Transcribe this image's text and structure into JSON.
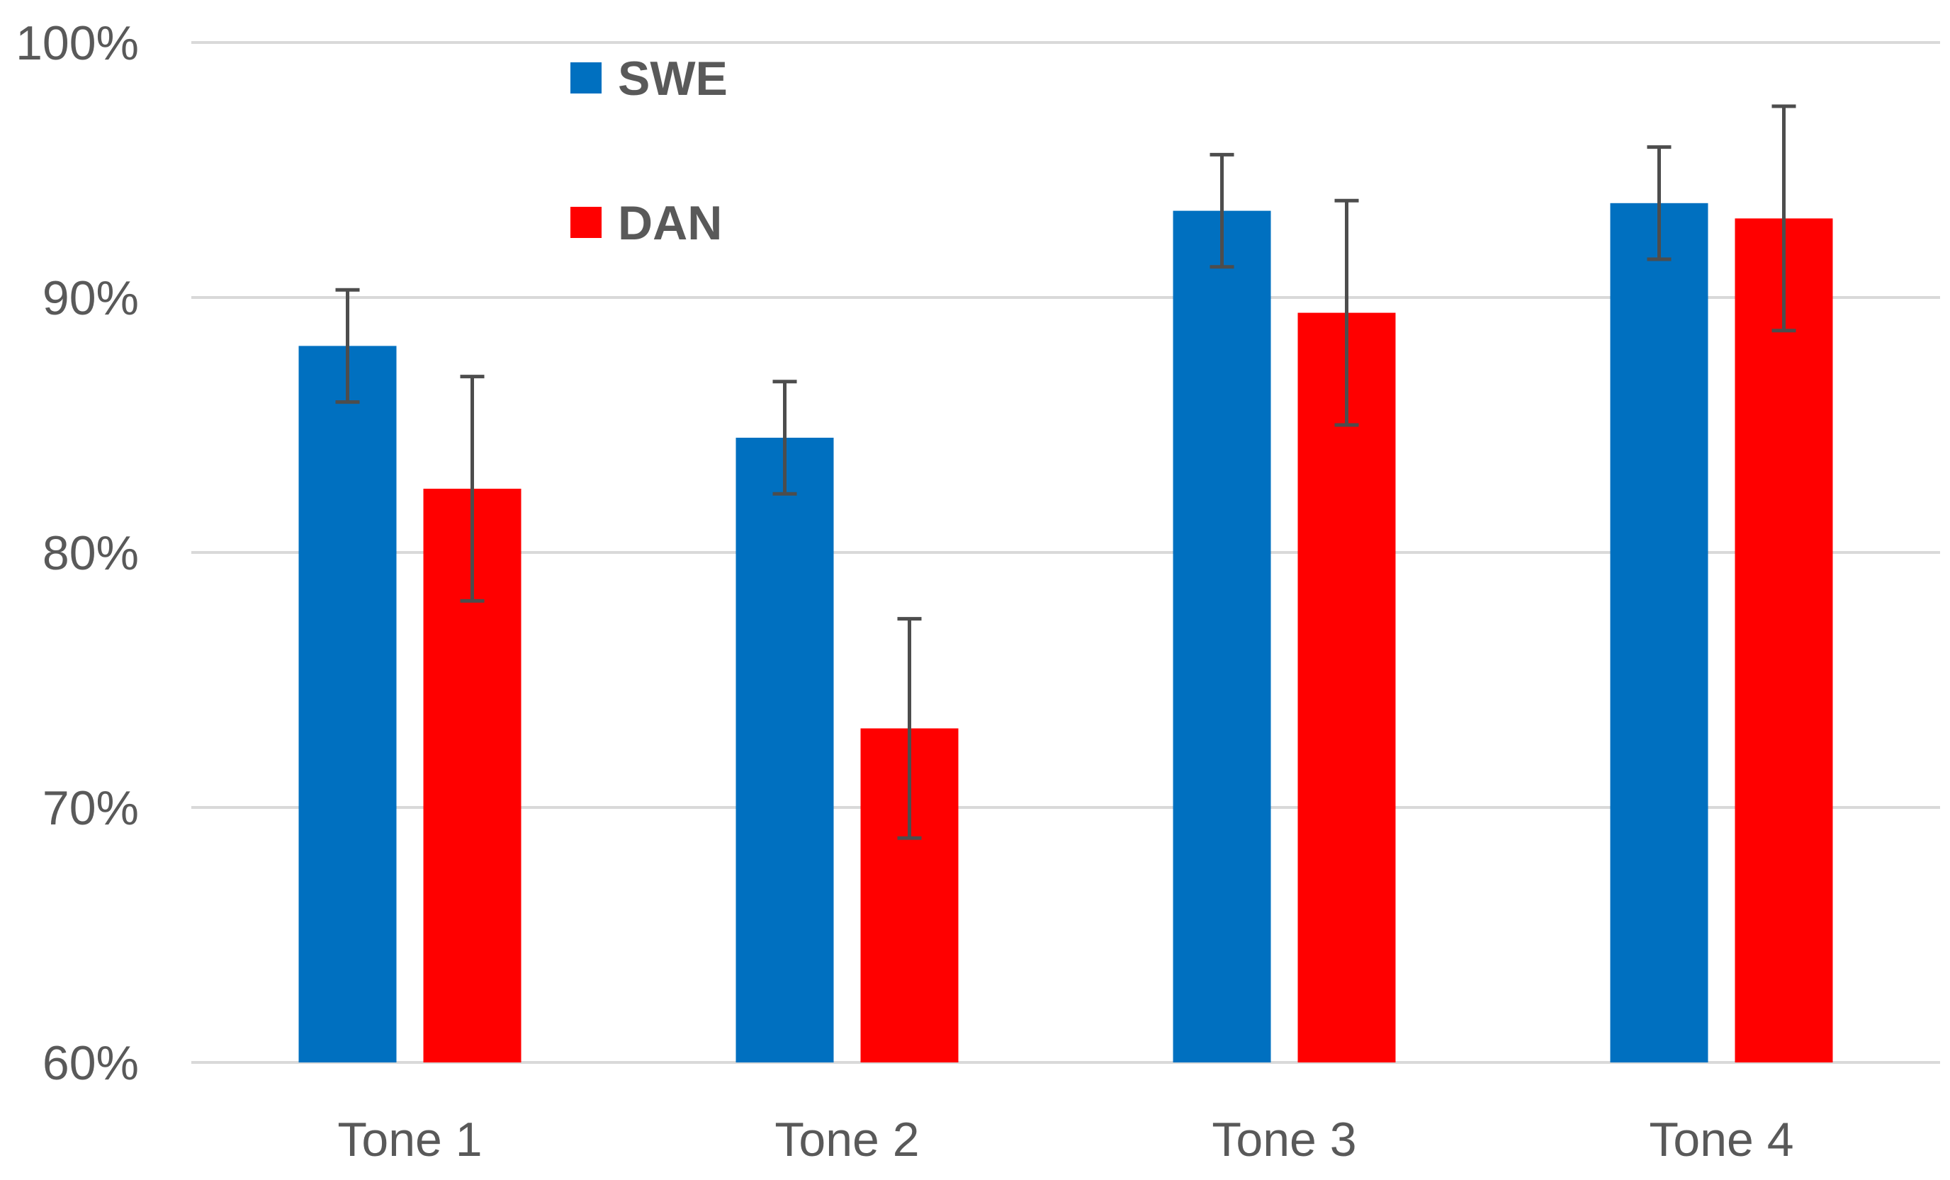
{
  "chart_data": {
    "type": "bar",
    "title": "",
    "xlabel": "",
    "ylabel": "",
    "categories": [
      "Tone 1",
      "Tone 2",
      "Tone 3",
      "Tone 4"
    ],
    "ylim": [
      60,
      100
    ],
    "yticks": [
      60,
      70,
      80,
      90,
      100
    ],
    "ytick_labels": [
      "60%",
      "70%",
      "80%",
      "90%",
      "100%"
    ],
    "grid": true,
    "legend_position": "top-left",
    "series": [
      {
        "name": "SWE",
        "color": "#0070c0",
        "values": [
          88.1,
          84.5,
          93.4,
          93.7
        ],
        "error": [
          2.2,
          2.2,
          2.2,
          2.2
        ]
      },
      {
        "name": "DAN",
        "color": "#ff0000",
        "values": [
          82.5,
          73.1,
          89.4,
          93.1
        ],
        "error": [
          4.4,
          4.3,
          4.4,
          4.4
        ]
      }
    ]
  }
}
